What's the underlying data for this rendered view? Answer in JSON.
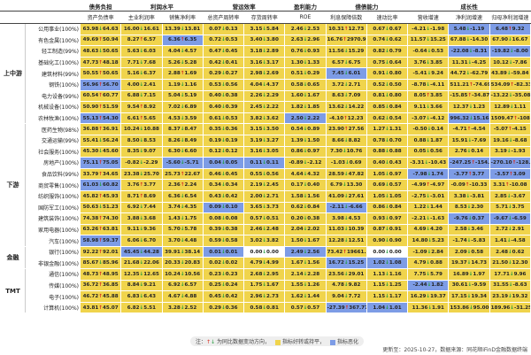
{
  "column_groups": [
    {
      "label": "债务负担",
      "columns": [
        "资产负债率"
      ]
    },
    {
      "label": "利润水平",
      "columns": [
        "主业利润率",
        "销售净利率"
      ]
    },
    {
      "label": "营运效率",
      "columns": [
        "总资产周转率",
        "存货周转率"
      ]
    },
    {
      "label": "盈利能力",
      "columns": [
        "ROE"
      ]
    },
    {
      "label": "偿债能力",
      "columns": [
        "利息保障倍数",
        "速动比率"
      ]
    },
    {
      "label": "成长性",
      "columns": [
        "营收增速",
        "净利润增速",
        "归母净利润增速"
      ]
    }
  ],
  "sections": [
    {
      "label": "上中游",
      "rows": [
        {
          "name": "公用事业(100%)",
          "colors": "yyyyyyyyybb",
          "cells": [
            "63.98↓64.63",
            "16.00↓16.61",
            "13.39↓13.81",
            "0.07↓0.13",
            "3.15↓5.84",
            "2.46↓2.53",
            "10.31↑12.73",
            "0.67↓0.67",
            "-4.21↓-1.98",
            "5.48↓-1.19",
            "6.48↑9.32"
          ]
        },
        {
          "name": "有色金属(100%)",
          "colors": "yybyyyyyyyy",
          "cells": [
            "49.69↑50.94",
            "8.27↑6.57",
            "6.36↑6.35",
            "0.72↓0.53",
            "3.40↓3.80",
            "2.63↓2.96",
            "16.76↑2970.93",
            "0.74↓0.62",
            "11.57↓15.25",
            "67.88↓-14.30",
            "67.90↓16.67"
          ]
        },
        {
          "name": "轻工制造(99%)",
          "colors": "yyyyyyyyybb",
          "cells": [
            "48.63↓50.65",
            "5.63↓6.03",
            "4.04↓4.57",
            "0.47↓0.45",
            "3.18↓2.89",
            "0.76↓0.93",
            "11.56↓15.29",
            "0.82↓0.79",
            "-0.64↓0.53",
            "-22.08↓-8.31",
            "-19.82↓-8.00"
          ]
        },
        {
          "name": "基础化工(100%)",
          "colors": "yyyyyyyyyyy",
          "cells": [
            "47.73↑48.18",
            "7.71↓7.68",
            "5.26↓5.28",
            "0.42↓0.41",
            "3.16↓3.17",
            "1.30↓1.33",
            "6.57↓6.75",
            "0.75↓0.64",
            "3.76↓3.85",
            "11.31↓-4.25",
            "10.12↓-7.86"
          ]
        },
        {
          "name": "建筑材料(99%)",
          "colors": "yyyyyybyyyy",
          "cells": [
            "50.55↑50.65",
            "5.16↓6.37",
            "2.88↑1.69",
            "0.29↓0.27",
            "2.98↓2.69",
            "0.51↓0.29",
            "7.45↓6.01",
            "0.91↓0.80",
            "-5.41↓9.24",
            "44.72↓-62.79",
            "43.89↓-59.84"
          ]
        },
        {
          "name": "钢铁(100%)",
          "colors": "byyyyyyyyyy",
          "cells": [
            "56.96↑56.70",
            "4.00↓2.41",
            "1.19↓1.16",
            "0.53↓0.56",
            "4.04↓4.37",
            "0.58↓0.65",
            "3.72↓2.71",
            "0.52↓0.50",
            "-8.78↓-4.11",
            "511.21↑-74.69",
            "534.09↑-82.33"
          ]
        },
        {
          "name": "电力设备(99%)",
          "colors": "yyyyyyyyyyy",
          "cells": [
            "60.54↑60.77",
            "6.88↓7.15",
            "5.04↓5.19",
            "0.40↓0.38",
            "2.26↓2.29",
            "1.60↓1.67",
            "8.63↓7.09",
            "0.81↓0.80",
            "8.05↑3.85",
            "-15.85↑-34.87",
            "-13.22↓-35.08"
          ]
        },
        {
          "name": "机械设备(100%)",
          "colors": "yyyyyyyyyyy",
          "cells": [
            "50.90↑51.59",
            "9.54↑8.92",
            "7.02↓6.89",
            "0.40↓0.39",
            "2.45↓2.22",
            "1.82↓1.85",
            "13.62↓14.22",
            "0.85↓0.84",
            "9.11↓3.66",
            "12.37↓1.23",
            "12.89↓1.11"
          ]
        },
        {
          "name": "农林牧渔(100%)",
          "colors": "byyyybyyyby",
          "cells": [
            "55.13↑54.30",
            "6.61↑5.65",
            "4.53↓3.59",
            "0.61↓0.53",
            "3.82↓3.62",
            "2.50↓2.22",
            "-4.10↑12.23",
            "0.62↓0.54",
            "-3.07↓-4.12",
            "996.32↓15.16",
            "1509.47↑-108.0"
          ]
        }
      ]
    },
    {
      "label": "下游",
      "rows": [
        {
          "name": "医药生物(98%)",
          "colors": "yyyyyyyyyyy",
          "cells": [
            "36.88↑36.91",
            "10.24↓10.88",
            "8.37↓8.47",
            "0.35↓0.36",
            "3.15↓3.50",
            "0.54↓0.89",
            "23.90↑27.56",
            "1.27↓1.31",
            "-0.50↓0.14",
            "-4.71↑-4.54",
            "-5.07↑-4.15"
          ]
        },
        {
          "name": "交通运输(99%)",
          "colors": "yyyyyyyyyyy",
          "cells": [
            "55.41↓56.24",
            "8.50↓8.53",
            "8.26↓8.49",
            "0.19↓0.19",
            "3.19↓3.27",
            "1.39↓1.50",
            "8.66↓8.82",
            "0.78↓0.70",
            "0.88↓1.87",
            "15.91↓-7.69",
            "19.16↓-8.68"
          ]
        },
        {
          "name": "社会服务(100%)",
          "colors": "yyyyyyyyyyy",
          "cells": [
            "45.30↓45.60",
            "8.35↓9.07",
            "6.30↓6.60",
            "0.12↓0.12",
            "3.16↓3.05",
            "0.86↓0.97",
            "7.30↓10.76",
            "0.88↓0.88",
            "0.05↓0.56",
            "2.76↓0.14",
            "3.19↓-1.93"
          ]
        },
        {
          "name": "房地产(100%)",
          "colors": "bybbbyyyybb",
          "cells": [
            "75.11↑75.05",
            "-0.82↓-2.29",
            "-5.60↓-5.71",
            "0.04↓0.05",
            "0.11↓0.11",
            "-0.89↓-2.12",
            "-1.03↓0.69",
            "0.40↓0.43",
            "-3.31↓-10.43",
            "-247.25↑-154.05",
            "-270.10↑-128.70"
          ]
        },
        {
          "name": "食品饮料(99%)",
          "colors": "yyyyyyyybbb",
          "cells": [
            "33.79↑34.65",
            "23.38↓25.70",
            "25.73↑22.67",
            "0.46↓0.45",
            "0.55↓0.56",
            "4.64↓4.32",
            "28.59↓47.82",
            "1.05↓0.97",
            "-7.98↓1.74",
            "-3.77↑3.77",
            "-3.57↑3.09"
          ]
        },
        {
          "name": "商贸零售(100%)",
          "colors": "byyyyyyyyyy",
          "cells": [
            "61.03↓60.82",
            "3.76↑3.77",
            "2.36↑2.24",
            "0.34↓0.34",
            "2.19↓2.45",
            "0.17↓0.40",
            "6.79↓13.30",
            "0.69↓0.57",
            "-4.99↑-4.97",
            "-0.09↑-10.33",
            "3.31↑-10.08"
          ]
        },
        {
          "name": "纺织服饰(100%)",
          "colors": "yyyyyyyyyyy",
          "cells": [
            "45.82↑45.93",
            "8.71↑8.69",
            "6.36↓6.54",
            "0.43↓0.42",
            "2.00↓2.71",
            "1.58↓1.56",
            "41.09↓27.61",
            "1.05↓1.05",
            "-2.75↓-3.01",
            "3.38↓-3.81",
            "2.85↓-3.67"
          ]
        },
        {
          "name": "国防军工(100%)",
          "colors": "yyybyybyyyy",
          "cells": [
            "50.63↓51.23",
            "6.92↓7.44",
            "3.74↓4.35",
            "0.09↓0.10",
            "3.65↓3.73",
            "0.62↓0.84",
            "-2.11↓-6.66",
            "0.86↓0.84",
            "1.22↓1.44",
            "8.53↓2.30",
            "5.71↓3.75"
          ]
        },
        {
          "name": "建筑装饰(100%)",
          "colors": "yyyyyyyyybb",
          "cells": [
            "74.38↑74.30",
            "3.88↓3.68",
            "1.43↓1.75",
            "0.08↓0.08",
            "0.57↓0.51",
            "0.20↓0.38",
            "3.98↓4.53",
            "0.93↓0.97",
            "-2.21↓-1.63",
            "-9.76↓0.37",
            "-9.67↓-6.59"
          ]
        },
        {
          "name": "家用电器(100%)",
          "colors": "yyyyyyyyyyy",
          "cells": [
            "63.26↑63.81",
            "9.11↓9.36",
            "5.70↓5.78",
            "0.39↓0.38",
            "2.46↓2.48",
            "2.04↓2.02",
            "11.03↓10.39",
            "0.87↓0.91",
            "4.69↓4.20",
            "2.58↓3.46",
            "2.72↓2.91"
          ]
        },
        {
          "name": "汽车(100%)",
          "colors": "byyyyyyyyyy",
          "cells": [
            "58.98↑59.37",
            "6.06↓6.70",
            "3.70↓4.48",
            "0.59↓0.58",
            "3.02↓3.82",
            "1.50↓1.67",
            "12.28↓12.51",
            "0.90↓0.90",
            "14.80↓5.23",
            "-1.74↓-5.83",
            "1.41↓-4.58"
          ]
        }
      ]
    },
    {
      "label": "金融",
      "rows": [
        {
          "name": "银行(100%)",
          "colors": "ybybwbywyyy",
          "cells": [
            "92.22↑92.01",
            "45.45↓44.28",
            "39.91↓38.14",
            "0.01↓0.01",
            "0.00↓0.00",
            "2.49↓2.56",
            "73.42↑19661.12",
            "0.00↓0.00",
            "-1.09↓2.84",
            "2.09↓0.58",
            "2.48↓0.62"
          ]
        },
        {
          "name": "非银金融(100%)",
          "colors": "yyyyyybbyyy",
          "cells": [
            "85.67↓85.96",
            "21.68↓22.06",
            "20.33↓20.83",
            "0.02↓0.02",
            "4.79↓4.99",
            "1.67↓1.56",
            "16.72↓15.25",
            "1.02↓1.08",
            "4.79↓0.88",
            "19.37↓14.73",
            "21.50↓12.30"
          ]
        }
      ]
    },
    {
      "label": "TMT",
      "rows": [
        {
          "name": "通信(100%)",
          "colors": "yyyyyyyyyyy",
          "cells": [
            "48.73↑48.95",
            "12.35↓12.65",
            "10.24↓10.56",
            "0.23↓0.23",
            "2.68↓2.95",
            "2.14↓2.28",
            "23.56↓29.01",
            "1.13↓1.16",
            "7.75↓5.79",
            "16.89↓1.97",
            "17.71↓9.96"
          ]
        },
        {
          "name": "传媒(100%)",
          "colors": "yyyyyyyybyy",
          "cells": [
            "36.72↑36.85",
            "8.84↓9.21",
            "6.92↓6.57",
            "0.25↓0.24",
            "1.75↓1.67",
            "1.55↓1.26",
            "4.78↓9.82",
            "1.15↓1.25",
            "-2.44↓1.82",
            "30.61↓-9.59",
            "31.55↓-8.63"
          ]
        },
        {
          "name": "电子(100%)",
          "colors": "yyyyyyyyyyy",
          "cells": [
            "46.72↑45.88",
            "6.83↓6.43",
            "4.67↓4.88",
            "0.45↓0.42",
            "2.96↓2.73",
            "1.62↓1.44",
            "9.04↓7.72",
            "1.15↓1.17",
            "16.29↓19.37",
            "17.15↓19.34",
            "23.19↓19.32"
          ]
        },
        {
          "name": "计算机(100%)",
          "colors": "yyyyyybbyyy",
          "cells": [
            "43.81↑45.07",
            "6.82↓5.51",
            "3.28↓2.52",
            "0.29↓0.36",
            "0.58↓0.81",
            "0.57↓0.57",
            "-27.39↑367.77",
            "1.04↓1.01",
            "11.36↓1.91",
            "153.86↓95.00",
            "189.96↓-31.25"
          ]
        }
      ]
    }
  ],
  "footer": {
    "note": "注：↑↓ 为同比数据变动方向，",
    "legend": [
      "指标好转或持平，",
      "指标恶化"
    ],
    "source": "更新至：2025-10-27，数据来源：同花顺iFinD金融数据终端"
  }
}
